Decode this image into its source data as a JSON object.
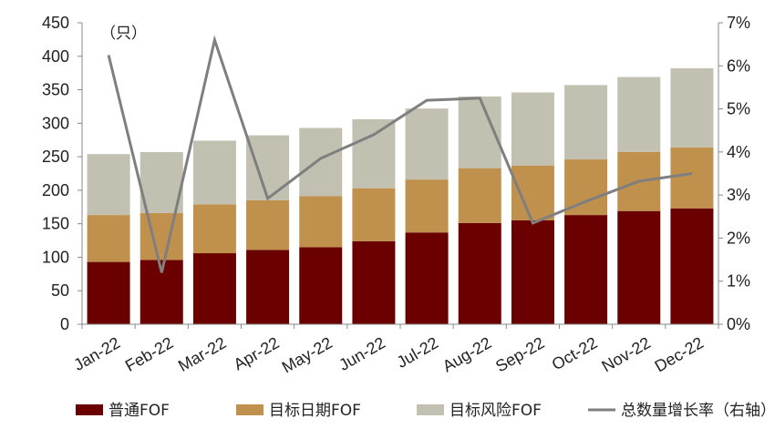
{
  "chart_data": {
    "type": "bar",
    "stacked": true,
    "categories": [
      "Jan-22",
      "Feb-22",
      "Mar-22",
      "Apr-22",
      "May-22",
      "Jun-22",
      "Jul-22",
      "Aug-22",
      "Sep-22",
      "Oct-22",
      "Nov-22",
      "Dec-22"
    ],
    "series": [
      {
        "name": "普通FOF",
        "color": "#6b0000",
        "values": [
          93,
          96,
          106,
          111,
          115,
          124,
          137,
          151,
          155,
          163,
          169,
          173
        ]
      },
      {
        "name": "目标日期FOF",
        "color": "#c0904d",
        "values": [
          70,
          70,
          73,
          74,
          76,
          79,
          79,
          82,
          82,
          83,
          88,
          91
        ]
      },
      {
        "name": "目标风险FOF",
        "color": "#c2c0b0",
        "values": [
          91,
          91,
          95,
          97,
          102,
          103,
          106,
          107,
          109,
          111,
          112,
          118
        ]
      }
    ],
    "line_series": {
      "name": "总数量增长率（右轴）",
      "color": "#7f7f7f",
      "axis": "right",
      "values": [
        6.25,
        1.2,
        6.6,
        2.92,
        3.85,
        4.4,
        5.2,
        5.25,
        2.35,
        2.85,
        3.32,
        3.5
      ]
    },
    "ylim": [
      0,
      450
    ],
    "yticks": [
      0,
      50,
      100,
      150,
      200,
      250,
      300,
      350,
      400,
      450
    ],
    "y2lim": [
      0,
      7
    ],
    "y2ticks": [
      "0%",
      "1%",
      "2%",
      "3%",
      "4%",
      "5%",
      "6%",
      "7%"
    ],
    "y_unit": "（只）",
    "legend_position": "bottom",
    "grid": false
  }
}
